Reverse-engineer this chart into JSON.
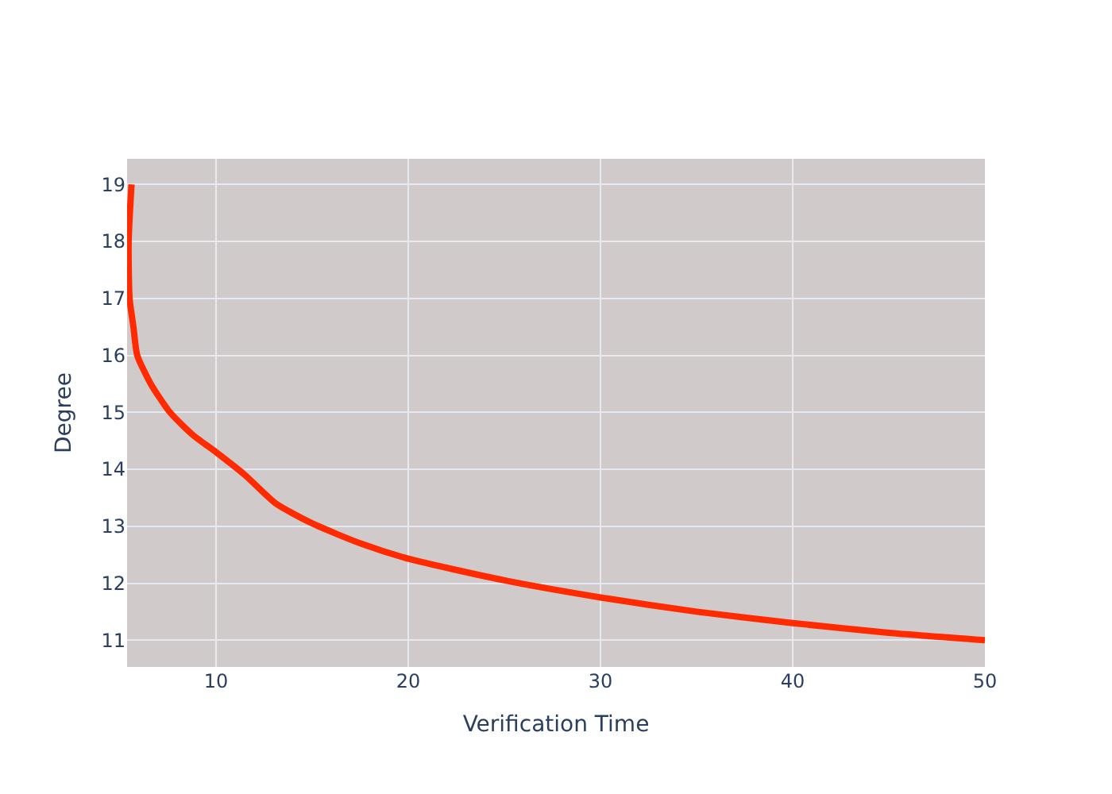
{
  "chart_data": {
    "type": "line",
    "xlabel": "Verification Time",
    "ylabel": "Degree",
    "x": [
      5.6,
      5.45,
      5.5,
      5.7,
      5.9,
      6.6,
      7.6,
      8.8,
      10,
      11.5,
      13.1,
      15,
      17.5,
      20,
      25,
      30,
      35,
      40,
      45,
      50
    ],
    "series": [
      {
        "color": "#ff2a00",
        "values": [
          19,
          18,
          17,
          16.5,
          16,
          15.5,
          15,
          14.6,
          14.3,
          13.9,
          13.4,
          13.05,
          12.7,
          12.43,
          12.05,
          11.75,
          11.5,
          11.3,
          11.13,
          11
        ]
      }
    ],
    "xlim": [
      5.37,
      50
    ],
    "ylim": [
      10.53,
      19.45
    ],
    "xticks": [
      10,
      20,
      30,
      40,
      50
    ],
    "yticks": [
      11,
      12,
      13,
      14,
      15,
      16,
      17,
      18,
      19
    ],
    "grid": true,
    "legend": false,
    "line_style": "solid",
    "marker": "none"
  }
}
